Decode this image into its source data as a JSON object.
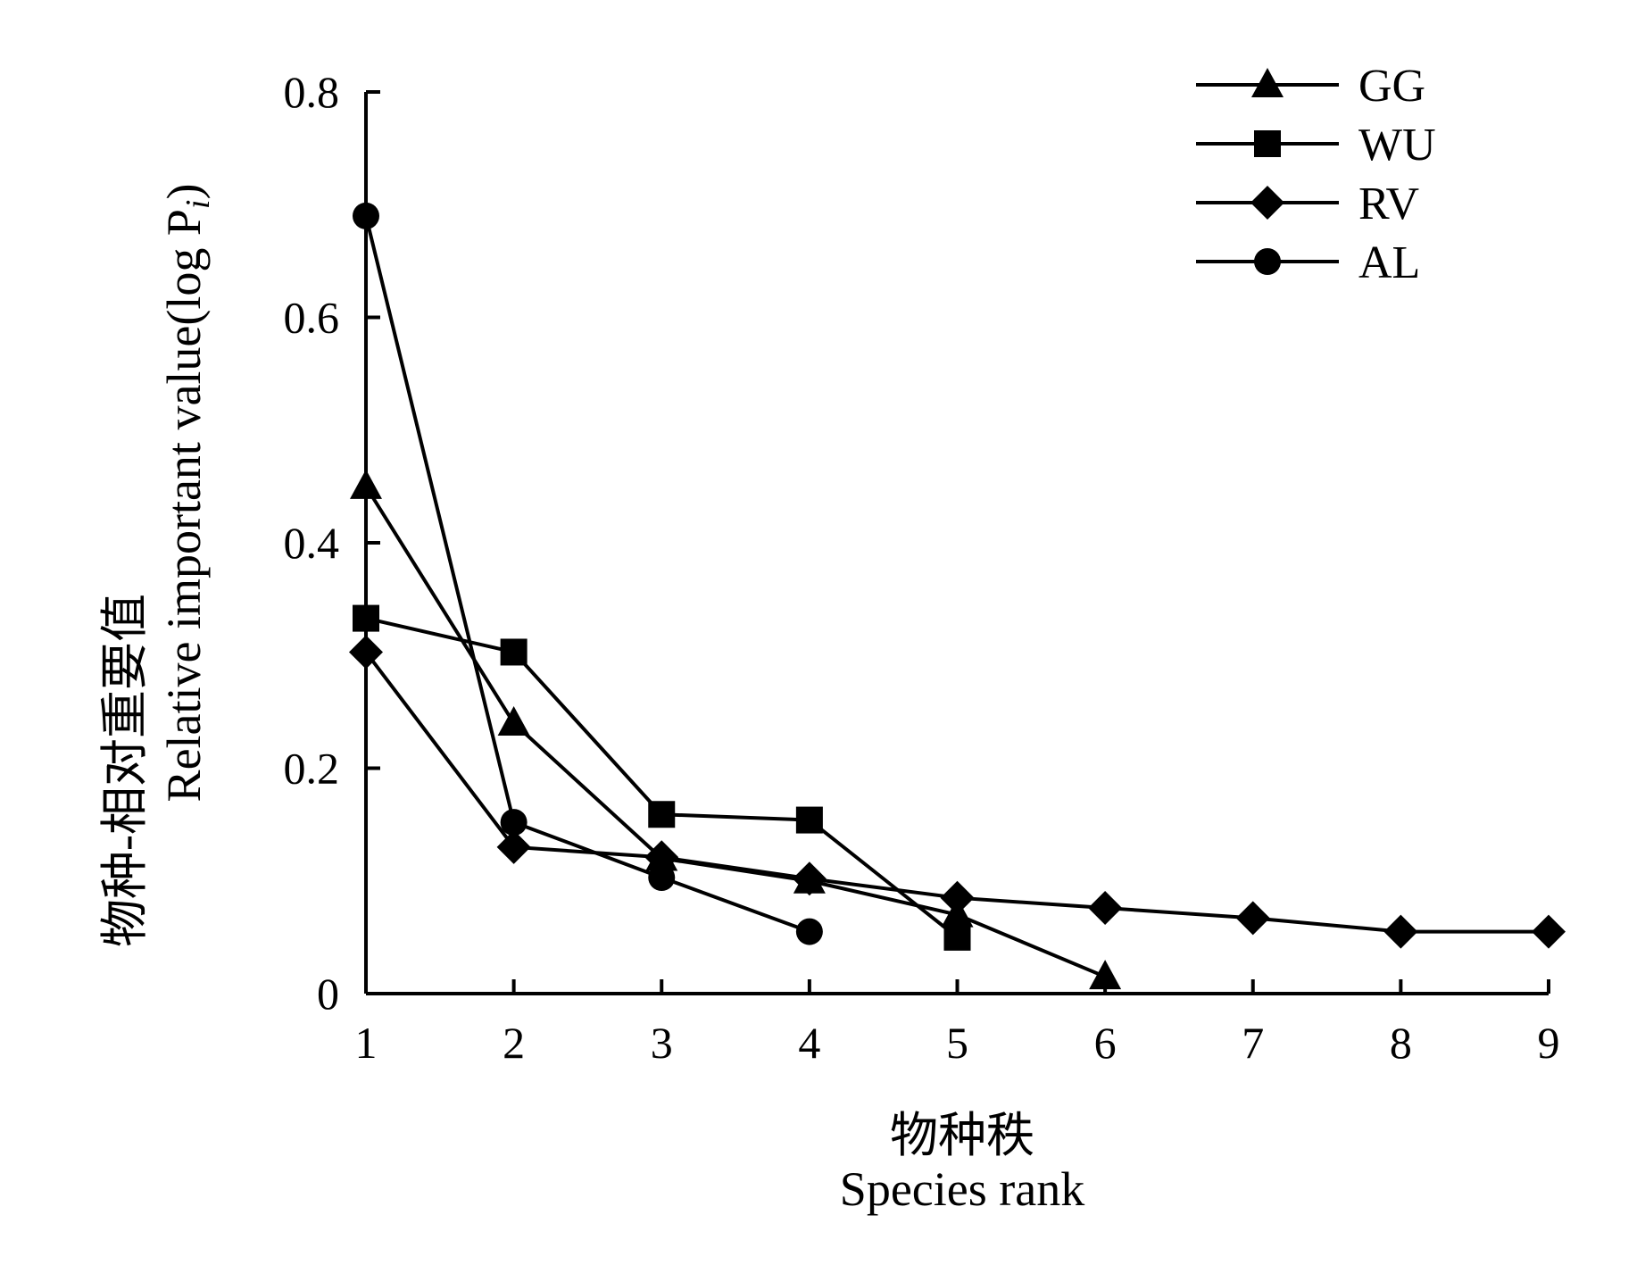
{
  "chart_data": {
    "type": "line",
    "title": "",
    "xlabel_cn": "物种秩",
    "xlabel_en": "Species rank",
    "ylabel_cn": "物种-相对重要值",
    "ylabel_en": "Relative important value(log P",
    "ylabel_sub": "i",
    "ylabel_close": ")",
    "xlim": [
      1,
      9
    ],
    "ylim": [
      0,
      0.8
    ],
    "x_ticks": [
      1,
      2,
      3,
      4,
      5,
      6,
      7,
      8,
      9
    ],
    "x_tick_labels": [
      "1",
      "2",
      "3",
      "4",
      "5",
      "6",
      "7",
      "8",
      "9"
    ],
    "y_ticks": [
      0,
      0.2,
      0.4,
      0.6,
      0.8
    ],
    "y_tick_labels": [
      "0",
      "0.2",
      "0.4",
      "0.6",
      "0.8"
    ],
    "grid": false,
    "legend_position": "top-right",
    "series": [
      {
        "name": "GG",
        "marker": "triangle",
        "x": [
          1,
          2,
          3,
          4,
          5,
          6
        ],
        "values": [
          0.45,
          0.24,
          0.12,
          0.1,
          0.07,
          0.015
        ]
      },
      {
        "name": "WU",
        "marker": "square",
        "x": [
          1,
          2,
          3,
          4,
          5
        ],
        "values": [
          0.333,
          0.303,
          0.159,
          0.154,
          0.05
        ]
      },
      {
        "name": "RV",
        "marker": "diamond",
        "x": [
          1,
          2,
          3,
          4,
          5,
          6,
          7,
          8,
          9
        ],
        "values": [
          0.303,
          0.13,
          0.121,
          0.102,
          0.085,
          0.076,
          0.067,
          0.055,
          0.055
        ]
      },
      {
        "name": "AL",
        "marker": "circle",
        "x": [
          1,
          2,
          3,
          4
        ],
        "values": [
          0.69,
          0.152,
          0.103,
          0.055
        ]
      }
    ],
    "colors": {
      "line": "#000000",
      "marker": "#000000"
    }
  }
}
